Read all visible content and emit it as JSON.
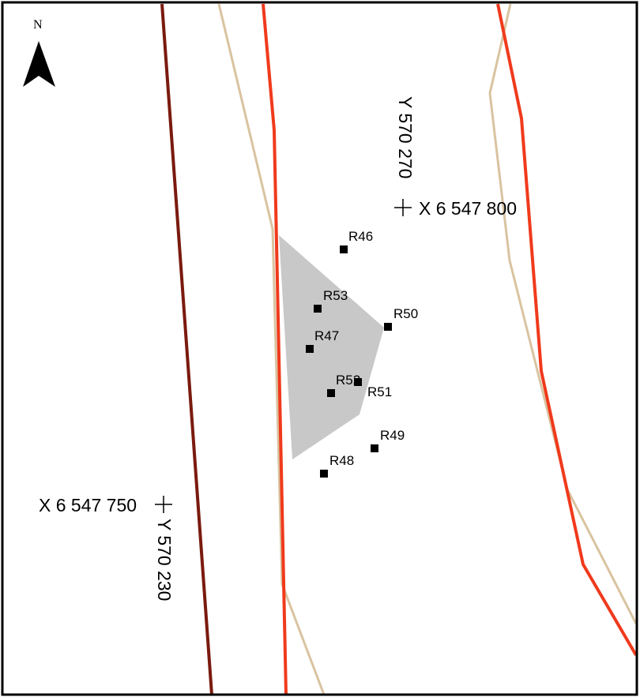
{
  "map": {
    "north_label": "N",
    "points": [
      {
        "id": "R46"
      },
      {
        "id": "R53"
      },
      {
        "id": "R50"
      },
      {
        "id": "R47"
      },
      {
        "id": "R52"
      },
      {
        "id": "R51"
      },
      {
        "id": "R49"
      },
      {
        "id": "R48"
      }
    ],
    "coordinates": {
      "upper_x": "X 6 547 800",
      "upper_y": "Y 570 270",
      "lower_x": "X 6 547 750",
      "lower_y": "Y 570 230"
    },
    "colors": {
      "frame": "#000000",
      "red_line": "#f03a1c",
      "dark_red_line": "#7a1a0e",
      "tan_line": "#d9c3a0",
      "polygon_fill": "#c8c8c8",
      "point": "#000000"
    }
  }
}
